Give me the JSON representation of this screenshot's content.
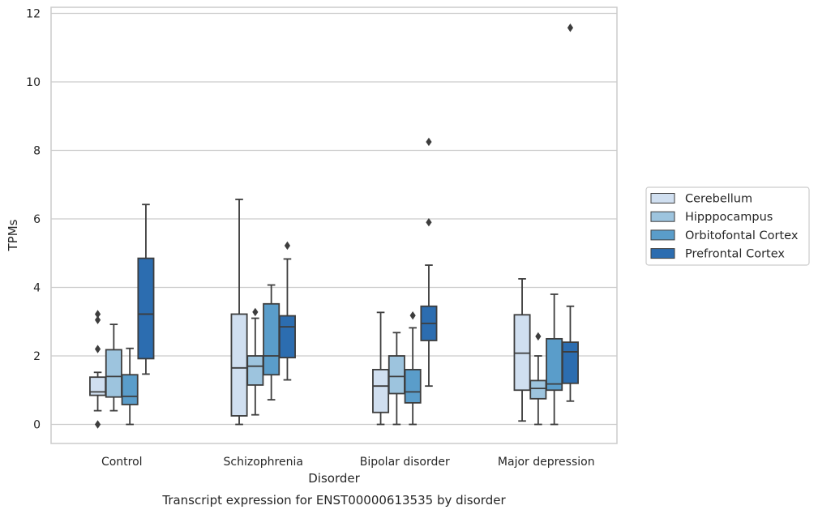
{
  "chart_data": {
    "type": "box",
    "title": "",
    "caption": "Transcript expression for ENST00000613535 by disorder",
    "xlabel": "Disorder",
    "ylabel": "TPMs",
    "ylim": [
      -0.55,
      12.2
    ],
    "yticks": [
      0,
      2,
      4,
      6,
      8,
      10,
      12
    ],
    "grid": "horizontal",
    "legend_position": "right",
    "categories": [
      "Control",
      "Schizophrenia",
      "Bipolar disorder",
      "Major depression"
    ],
    "series": [
      {
        "name": "Cerebellum",
        "color": "#d0dff0",
        "boxes": [
          {
            "whisker_low": 0.4,
            "q1": 0.85,
            "median": 0.95,
            "q3": 1.38,
            "whisker_high": 1.52,
            "outliers": [
              0.0,
              2.2,
              3.05,
              3.22
            ]
          },
          {
            "whisker_low": 0.0,
            "q1": 0.25,
            "median": 1.65,
            "q3": 3.22,
            "whisker_high": 6.57,
            "outliers": []
          },
          {
            "whisker_low": 0.0,
            "q1": 0.35,
            "median": 1.12,
            "q3": 1.6,
            "whisker_high": 3.27,
            "outliers": []
          },
          {
            "whisker_low": 0.1,
            "q1": 1.0,
            "median": 2.08,
            "q3": 3.2,
            "whisker_high": 4.25,
            "outliers": []
          }
        ]
      },
      {
        "name": "Hipppocampus",
        "color": "#9dc4de",
        "boxes": [
          {
            "whisker_low": 0.4,
            "q1": 0.8,
            "median": 1.4,
            "q3": 2.18,
            "whisker_high": 2.92,
            "outliers": []
          },
          {
            "whisker_low": 0.28,
            "q1": 1.15,
            "median": 1.7,
            "q3": 2.0,
            "whisker_high": 3.1,
            "outliers": [
              3.28
            ]
          },
          {
            "whisker_low": 0.0,
            "q1": 0.9,
            "median": 1.4,
            "q3": 2.0,
            "whisker_high": 2.68,
            "outliers": []
          },
          {
            "whisker_low": 0.0,
            "q1": 0.75,
            "median": 1.05,
            "q3": 1.28,
            "whisker_high": 2.0,
            "outliers": [
              2.57
            ]
          }
        ]
      },
      {
        "name": "Orbitofontal Cortex",
        "color": "#5a9dca",
        "boxes": [
          {
            "whisker_low": 0.0,
            "q1": 0.58,
            "median": 0.82,
            "q3": 1.45,
            "whisker_high": 2.22,
            "outliers": []
          },
          {
            "whisker_low": 0.72,
            "q1": 1.45,
            "median": 2.0,
            "q3": 3.52,
            "whisker_high": 4.07,
            "outliers": []
          },
          {
            "whisker_low": 0.0,
            "q1": 0.63,
            "median": 0.95,
            "q3": 1.6,
            "whisker_high": 2.82,
            "outliers": [
              3.18
            ]
          },
          {
            "whisker_low": 0.0,
            "q1": 1.0,
            "median": 1.18,
            "q3": 2.5,
            "whisker_high": 3.8,
            "outliers": []
          }
        ]
      },
      {
        "name": "Prefrontal Cortex",
        "color": "#2c6db0",
        "boxes": [
          {
            "whisker_low": 1.47,
            "q1": 1.92,
            "median": 3.22,
            "q3": 4.85,
            "whisker_high": 6.42,
            "outliers": []
          },
          {
            "whisker_low": 1.3,
            "q1": 1.95,
            "median": 2.85,
            "q3": 3.17,
            "whisker_high": 4.83,
            "outliers": [
              5.22
            ]
          },
          {
            "whisker_low": 1.12,
            "q1": 2.45,
            "median": 2.95,
            "q3": 3.45,
            "whisker_high": 4.65,
            "outliers": [
              5.9,
              8.25
            ]
          },
          {
            "whisker_low": 0.68,
            "q1": 1.2,
            "median": 2.12,
            "q3": 2.4,
            "whisker_high": 3.45,
            "outliers": [
              11.58
            ]
          }
        ]
      }
    ]
  }
}
